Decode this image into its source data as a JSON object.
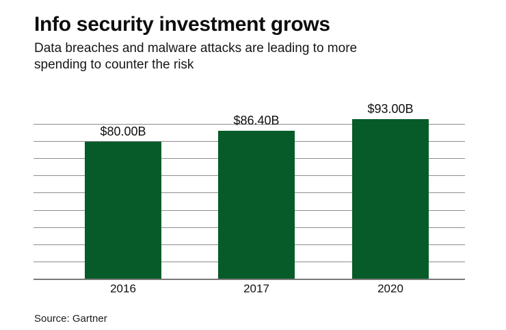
{
  "header": {
    "title": "Info security investment grows",
    "subtitle_lines": [
      "Data breaches and malware attacks are leading to more",
      "spending to counter the risk"
    ]
  },
  "footer": {
    "source": "Source: Gartner"
  },
  "colors": {
    "bar_green": "#075b29",
    "gridline_gray": "#8c8c8c",
    "axis_gray": "#787878",
    "text_black": "#0d0d0d"
  },
  "chart_data": {
    "type": "bar",
    "title": "Info security investment grows",
    "subtitle": "Data breaches and malware attacks are leading to more spending to counter the risk",
    "categories": [
      "2016",
      "2017",
      "2020"
    ],
    "values": [
      80.0,
      86.4,
      93.0
    ],
    "value_labels": [
      "$80.00B",
      "$86.40B",
      "$93.00B"
    ],
    "unit": "USD billions",
    "xlabel": "",
    "ylabel": "",
    "ylim": [
      0,
      93
    ],
    "gridlines": {
      "interval": 10,
      "max": 90,
      "visible": true
    },
    "legend": "none",
    "bar_color": "#075b29",
    "source": "Source: Gartner"
  }
}
